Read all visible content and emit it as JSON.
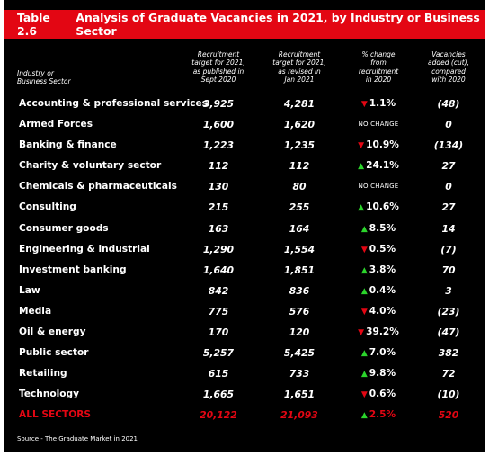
{
  "table": {
    "label": "Table 2.6",
    "title": "Analysis of Graduate Vacancies in 2021, by Industry or Business Sector",
    "colors": {
      "accent": "#e30613",
      "background": "#000000",
      "up": "#2bd42b",
      "down": "#e30613"
    },
    "headers": {
      "sector": [
        "Industry or",
        "Business Sector"
      ],
      "target_2021": [
        "Recruitment",
        "target for 2021,",
        "as published in",
        "Sept 2020"
      ],
      "revised_2021": [
        "Recruitment",
        "target for 2021,",
        "as revised in",
        "Jan 2021"
      ],
      "pct_change": [
        "% change",
        "from",
        "recruitment",
        "in 2020"
      ],
      "vacancies": [
        "Vacancies",
        "added (cut),",
        "compared",
        "with 2020"
      ]
    },
    "rows": [
      {
        "sector": "Accounting & professional services",
        "target": "3,925",
        "revised": "4,281",
        "direction": "down",
        "change": "1.1%",
        "vacancies": "(48)"
      },
      {
        "sector": "Armed Forces",
        "target": "1,600",
        "revised": "1,620",
        "direction": "none",
        "change": "NO CHANGE",
        "vacancies": "0"
      },
      {
        "sector": "Banking & finance",
        "target": "1,223",
        "revised": "1,235",
        "direction": "down",
        "change": "10.9%",
        "vacancies": "(134)"
      },
      {
        "sector": "Charity & voluntary sector",
        "target": "112",
        "revised": "112",
        "direction": "up",
        "change": "24.1%",
        "vacancies": "27"
      },
      {
        "sector": "Chemicals & pharmaceuticals",
        "target": "130",
        "revised": "80",
        "direction": "none",
        "change": "NO CHANGE",
        "vacancies": "0"
      },
      {
        "sector": "Consulting",
        "target": "215",
        "revised": "255",
        "direction": "up",
        "change": "10.6%",
        "vacancies": "27"
      },
      {
        "sector": "Consumer goods",
        "target": "163",
        "revised": "164",
        "direction": "up",
        "change": "8.5%",
        "vacancies": "14"
      },
      {
        "sector": "Engineering & industrial",
        "target": "1,290",
        "revised": "1,554",
        "direction": "down",
        "change": "0.5%",
        "vacancies": "(7)"
      },
      {
        "sector": "Investment banking",
        "target": "1,640",
        "revised": "1,851",
        "direction": "up",
        "change": "3.8%",
        "vacancies": "70"
      },
      {
        "sector": "Law",
        "target": "842",
        "revised": "836",
        "direction": "up",
        "change": "0.4%",
        "vacancies": "3"
      },
      {
        "sector": "Media",
        "target": "775",
        "revised": "576",
        "direction": "down",
        "change": "4.0%",
        "vacancies": "(23)"
      },
      {
        "sector": "Oil & energy",
        "target": "170",
        "revised": "120",
        "direction": "down",
        "change": "39.2%",
        "vacancies": "(47)"
      },
      {
        "sector": "Public sector",
        "target": "5,257",
        "revised": "5,425",
        "direction": "up",
        "change": "7.0%",
        "vacancies": "382"
      },
      {
        "sector": "Retailing",
        "target": "615",
        "revised": "733",
        "direction": "up",
        "change": "9.8%",
        "vacancies": "72"
      },
      {
        "sector": "Technology",
        "target": "1,665",
        "revised": "1,651",
        "direction": "down",
        "change": "0.6%",
        "vacancies": "(10)"
      },
      {
        "sector": "ALL SECTORS",
        "target": "20,122",
        "revised": "21,093",
        "direction": "up",
        "change": "2.5%",
        "vacancies": "520",
        "total": true
      }
    ],
    "source": "Source - The Graduate Market in 2021"
  }
}
